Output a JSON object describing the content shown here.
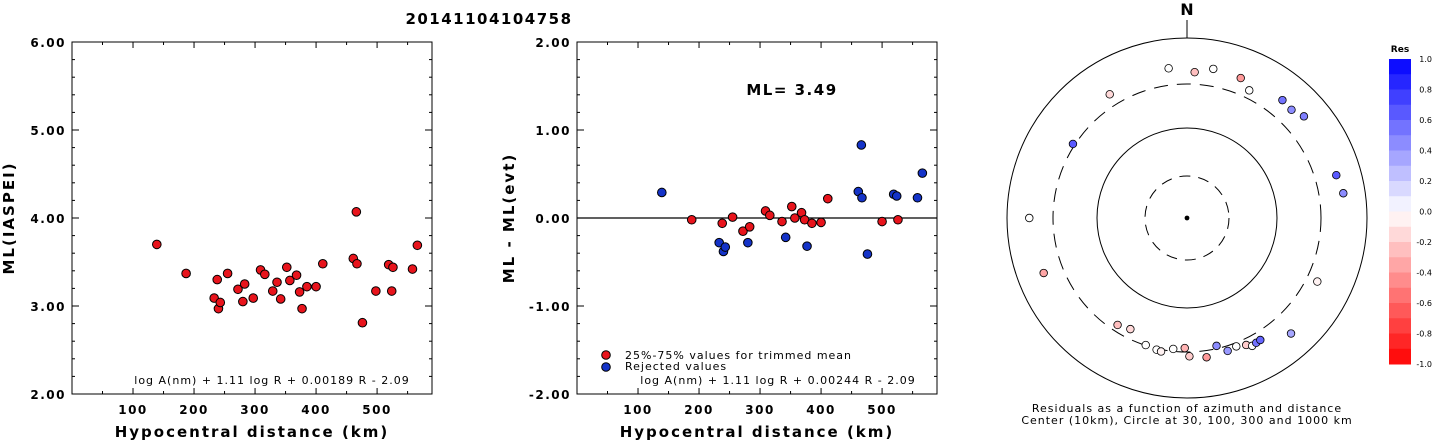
{
  "title": "20141104104758",
  "chart_data": [
    {
      "type": "scatter",
      "id": "ml-vs-distance",
      "xlabel": "Hypocentral distance (km)",
      "ylabel": "ML(IASPEI)",
      "xlim": [
        0,
        590
      ],
      "ylim": [
        2.0,
        6.0
      ],
      "xticks": [
        "100",
        "200",
        "300",
        "400",
        "500"
      ],
      "xtick_values": [
        100,
        200,
        300,
        400,
        500
      ],
      "yticks": [
        "2.00",
        "3.00",
        "4.00",
        "5.00",
        "6.00"
      ],
      "ytick_values": [
        2.0,
        3.0,
        4.0,
        5.0,
        6.0
      ],
      "formula": "log A(nm) + 1.11 log R + 0.00189 R - 2.09",
      "points": [
        [
          139,
          3.7
        ],
        [
          187,
          3.37
        ],
        [
          233,
          3.09
        ],
        [
          238,
          3.3
        ],
        [
          240,
          2.97
        ],
        [
          243,
          3.04
        ],
        [
          255,
          3.37
        ],
        [
          272,
          3.19
        ],
        [
          280,
          3.05
        ],
        [
          283,
          3.25
        ],
        [
          297,
          3.09
        ],
        [
          309,
          3.41
        ],
        [
          316,
          3.36
        ],
        [
          329,
          3.17
        ],
        [
          336,
          3.27
        ],
        [
          342,
          3.08
        ],
        [
          352,
          3.44
        ],
        [
          357,
          3.29
        ],
        [
          368,
          3.35
        ],
        [
          373,
          3.16
        ],
        [
          377,
          2.97
        ],
        [
          385,
          3.22
        ],
        [
          400,
          3.22
        ],
        [
          411,
          3.48
        ],
        [
          461,
          3.54
        ],
        [
          466,
          4.07
        ],
        [
          467,
          3.48
        ],
        [
          476,
          2.81
        ],
        [
          498,
          3.17
        ],
        [
          519,
          3.47
        ],
        [
          524,
          3.17
        ],
        [
          526,
          3.44
        ],
        [
          558,
          3.42
        ],
        [
          566,
          3.69
        ]
      ]
    },
    {
      "type": "scatter",
      "id": "ml-residual-vs-distance",
      "xlabel": "Hypocentral distance (km)",
      "ylabel": "ML - ML(evt)",
      "xlim": [
        0,
        590
      ],
      "ylim": [
        -2.0,
        2.0
      ],
      "xticks": [
        "100",
        "200",
        "300",
        "400",
        "500"
      ],
      "xtick_values": [
        100,
        200,
        300,
        400,
        500
      ],
      "yticks": [
        "-2.00",
        "-1.00",
        "0.00",
        "1.00",
        "2.00"
      ],
      "ytick_values": [
        -2.0,
        -1.0,
        0.0,
        1.0,
        2.0
      ],
      "annotation": "ML= 3.49",
      "formula": "log A(nm) + 1.11 log R + 0.00244 R - 2.09",
      "legend": [
        {
          "label": "25%-75% values for trimmed mean",
          "color": "#e8141c"
        },
        {
          "label": "Rejected values",
          "color": "#1433c8"
        }
      ],
      "series": [
        {
          "name": "25%-75% values for trimmed mean",
          "color": "#e8141c",
          "points": [
            [
              188,
              -0.02
            ],
            [
              238,
              -0.06
            ],
            [
              255,
              0.01
            ],
            [
              272,
              -0.15
            ],
            [
              283,
              -0.1
            ],
            [
              309,
              0.08
            ],
            [
              316,
              0.03
            ],
            [
              336,
              -0.04
            ],
            [
              352,
              0.13
            ],
            [
              357,
              0.0
            ],
            [
              368,
              0.06
            ],
            [
              373,
              -0.02
            ],
            [
              385,
              -0.06
            ],
            [
              400,
              -0.05
            ],
            [
              411,
              0.22
            ],
            [
              500,
              -0.04
            ],
            [
              526,
              -0.02
            ]
          ]
        },
        {
          "name": "Rejected values",
          "color": "#1433c8",
          "points": [
            [
              139,
              0.29
            ],
            [
              233,
              -0.28
            ],
            [
              240,
              -0.38
            ],
            [
              243,
              -0.33
            ],
            [
              280,
              -0.28
            ],
            [
              342,
              -0.22
            ],
            [
              377,
              -0.32
            ],
            [
              461,
              0.3
            ],
            [
              466,
              0.83
            ],
            [
              467,
              0.23
            ],
            [
              476,
              -0.41
            ],
            [
              519,
              0.27
            ],
            [
              524,
              0.25
            ],
            [
              558,
              0.23
            ],
            [
              566,
              0.51
            ]
          ]
        }
      ]
    },
    {
      "type": "polar-scatter",
      "id": "azimuth-residuals",
      "north_label": "N",
      "caption_line1": "Residuals as a function of azimuth and distance",
      "caption_line2": "Center (10km), Circle at 30, 100, 300 and 1000 km",
      "colorbar_title": "Res",
      "colorbar_ticks": [
        "1.0",
        "0.8",
        "0.6",
        "0.4",
        "0.2",
        "0.0",
        "-0.2",
        "-0.4",
        "-0.6",
        "-0.8",
        "-1.0"
      ],
      "colorbar_range": [
        -1.0,
        1.0
      ],
      "points": [
        {
          "azimuth": 353,
          "distance": 466,
          "res": 0.0
        },
        {
          "azimuth": 10,
          "distance": 473,
          "res": 0.0
        },
        {
          "azimuth": 3,
          "distance": 411,
          "res": -0.25
        },
        {
          "azimuth": 21,
          "distance": 455,
          "res": -0.4
        },
        {
          "azimuth": 328,
          "distance": 409,
          "res": -0.15
        },
        {
          "azimuth": 26,
          "distance": 370,
          "res": 0.0
        },
        {
          "azimuth": 39,
          "distance": 476,
          "res": 0.55
        },
        {
          "azimuth": 44,
          "distance": 461,
          "res": 0.45
        },
        {
          "azimuth": 49,
          "distance": 519,
          "res": 0.5
        },
        {
          "azimuth": 303,
          "distance": 316,
          "res": 0.65
        },
        {
          "azimuth": 74,
          "distance": 524,
          "res": 0.65
        },
        {
          "azimuth": 81,
          "distance": 566,
          "res": 0.45
        },
        {
          "azimuth": 270,
          "distance": 558,
          "res": 0.0
        },
        {
          "azimuth": 116,
          "distance": 400,
          "res": -0.05
        },
        {
          "azimuth": 249,
          "distance": 500,
          "res": -0.35
        },
        {
          "azimuth": 138,
          "distance": 526,
          "res": 0.35
        },
        {
          "azimuth": 213,
          "distance": 255,
          "res": -0.25
        },
        {
          "azimuth": 207,
          "distance": 238,
          "res": -0.15
        },
        {
          "azimuth": 198,
          "distance": 297,
          "res": 0.0
        },
        {
          "azimuth": 193,
          "distance": 309,
          "res": 0.0
        },
        {
          "azimuth": 191,
          "distance": 316,
          "res": -0.05
        },
        {
          "azimuth": 186,
          "distance": 283,
          "res": 0.0
        },
        {
          "azimuth": 181,
          "distance": 272,
          "res": -0.3
        },
        {
          "azimuth": 179,
          "distance": 336,
          "res": -0.2
        },
        {
          "azimuth": 172,
          "distance": 357,
          "res": -0.4
        },
        {
          "azimuth": 167,
          "distance": 280,
          "res": 0.45
        },
        {
          "azimuth": 163,
          "distance": 342,
          "res": 0.4
        },
        {
          "azimuth": 159,
          "distance": 329,
          "res": 0.0
        },
        {
          "azimuth": 155,
          "distance": 352,
          "res": -0.2
        },
        {
          "azimuth": 153,
          "distance": 385,
          "res": 0.0
        },
        {
          "azimuth": 151,
          "distance": 377,
          "res": 0.55
        },
        {
          "azimuth": 149,
          "distance": 373,
          "res": 0.6
        }
      ]
    }
  ]
}
